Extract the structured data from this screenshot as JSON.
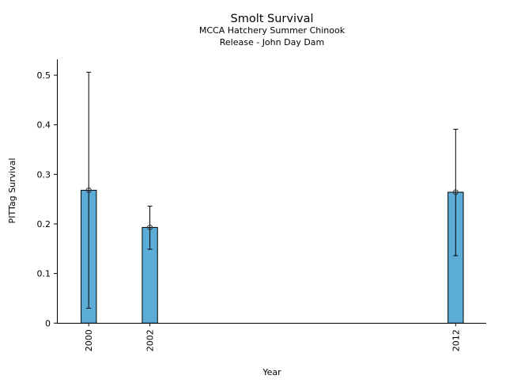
{
  "chart_data": {
    "type": "bar",
    "title": "Smolt Survival",
    "subtitle_lines": [
      "MCCA Hatchery Summer Chinook",
      "Release - John Day Dam"
    ],
    "xlabel": "Year",
    "ylabel": "PITTag Survival",
    "x": [
      2000,
      2002,
      2012
    ],
    "x_tick_labels": [
      "2000",
      "2002",
      "2012"
    ],
    "values": [
      0.268,
      0.193,
      0.264
    ],
    "error_upper": [
      0.506,
      0.236,
      0.391
    ],
    "error_lower": [
      0.03,
      0.149,
      0.136
    ],
    "bar_width_years": 0.5,
    "xlim": [
      1998.96,
      2013.0
    ],
    "ylim": [
      0,
      0.532
    ],
    "y_ticks": [
      0,
      0.1,
      0.2,
      0.3,
      0.4,
      0.5
    ],
    "y_tick_labels": [
      "0",
      "0.1",
      "0.2",
      "0.3",
      "0.4",
      "0.5"
    ],
    "grid": false,
    "bar_color": "#5bacd6",
    "edge_color": "#000000"
  }
}
